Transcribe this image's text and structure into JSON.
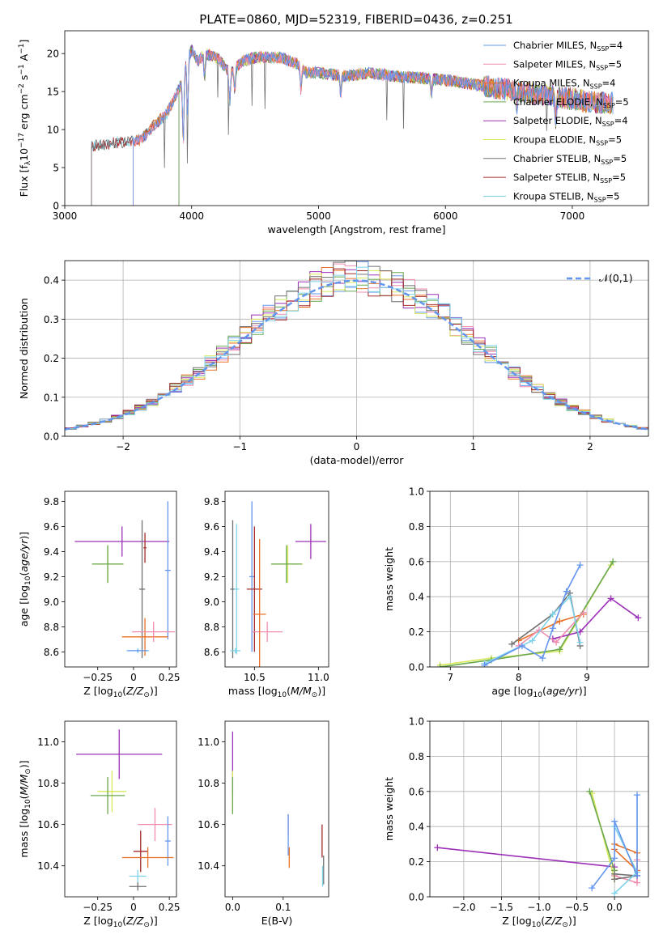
{
  "figure_title": "PLATE=0860, MJD=52319, FIBERID=0436, z=0.251",
  "colors": {
    "chabrier_miles": "#6495ed",
    "salpeter_miles": "#f08cb0",
    "kroupa_miles": "#e8722a",
    "chabrier_elodie": "#6aa84f",
    "salpeter_elodie": "#9c30b8",
    "kroupa_elodie": "#d8e85a",
    "chabrier_stelib": "#707070",
    "salpeter_stelib": "#a52a2a",
    "kroupa_stelib": "#7ed3ea",
    "normal_curve": "#6495ed"
  },
  "series_names": [
    {
      "key": "chabrier_miles",
      "prefix": "Chabrier MILES, N",
      "sub": "SSP",
      "suffix": "=4"
    },
    {
      "key": "salpeter_miles",
      "prefix": "Salpeter MILES, N",
      "sub": "SSP",
      "suffix": "=5"
    },
    {
      "key": "kroupa_miles",
      "prefix": "Kroupa MILES, N",
      "sub": "SSP",
      "suffix": "=4"
    },
    {
      "key": "chabrier_elodie",
      "prefix": "Chabrier ELODIE, N",
      "sub": "SSP",
      "suffix": "=5"
    },
    {
      "key": "salpeter_elodie",
      "prefix": "Salpeter ELODIE, N",
      "sub": "SSP",
      "suffix": "=4"
    },
    {
      "key": "kroupa_elodie",
      "prefix": "Kroupa ELODIE, N",
      "sub": "SSP",
      "suffix": "=5"
    },
    {
      "key": "chabrier_stelib",
      "prefix": "Chabrier STELIB, N",
      "sub": "SSP",
      "suffix": "=5"
    },
    {
      "key": "salpeter_stelib",
      "prefix": "Salpeter STELIB, N",
      "sub": "SSP",
      "suffix": "=5"
    },
    {
      "key": "kroupa_stelib",
      "prefix": "Kroupa STELIB, N",
      "sub": "SSP",
      "suffix": "=5"
    }
  ],
  "chart_data": [
    {
      "id": "spectrum",
      "type": "line",
      "xlabel": "wavelength [Angstrom, rest frame]",
      "ylabel": "Flux [f_λ 10^-17 erg cm^-2 s^-1 A^-1]",
      "xlim": [
        3000,
        7600
      ],
      "ylim": [
        0,
        23
      ],
      "xticks": [
        3000,
        4000,
        5000,
        6000,
        7000
      ],
      "yticks": [
        0,
        5,
        10,
        15,
        20
      ],
      "start_wavelength": {
        "chabrier_miles": 3540,
        "salpeter_miles": 3540,
        "kroupa_miles": 3540,
        "chabrier_elodie": 3900,
        "salpeter_elodie": 3900,
        "kroupa_elodie": 3900,
        "chabrier_stelib": 3210,
        "salpeter_stelib": 3210,
        "kroupa_stelib": 3210
      },
      "continuum": {
        "x": [
          3210,
          3400,
          3600,
          3700,
          3800,
          3860,
          3920,
          3960,
          4000,
          4050,
          4100,
          4200,
          4300,
          4400,
          4500,
          4700,
          4850,
          4900,
          5000,
          5200,
          5400,
          5600,
          5800,
          6000,
          6200,
          6400,
          6600,
          6800,
          7000,
          7200,
          7300
        ],
        "y": [
          7.8,
          8.3,
          8.6,
          10.5,
          12,
          14,
          16,
          19,
          20.5,
          19,
          20,
          19.5,
          17.5,
          19,
          19.5,
          19.5,
          18.5,
          17.5,
          17.5,
          17,
          17.5,
          17,
          16.8,
          16.5,
          16,
          15.5,
          15,
          14.5,
          14,
          13.5,
          13.5
        ]
      }
    },
    {
      "id": "residuals",
      "type": "histogram",
      "xlabel": "(data-model)/error",
      "ylabel": "Normed distribution",
      "xlim": [
        -2.5,
        2.5
      ],
      "ylim": [
        0,
        0.45
      ],
      "xticks": [
        -2,
        -1,
        0,
        1,
        2
      ],
      "yticks": [
        0.0,
        0.1,
        0.2,
        0.3,
        0.4
      ],
      "bin_width": 0.1,
      "reference_curve": {
        "name": "𝒩(0,1)",
        "mean": 0,
        "sigma": 1
      }
    },
    {
      "id": "age_vs_Z",
      "type": "errorbar",
      "xlabel": "Z [log10(Z/Z☉)]",
      "ylabel": "age [log10(age/yr)]",
      "xlim": [
        -0.48,
        0.3
      ],
      "ylim": [
        8.48,
        9.88
      ],
      "xticks": [
        -0.25,
        0.0,
        0.25
      ],
      "yticks": [
        8.6,
        8.8,
        9.0,
        9.2,
        9.4,
        9.6,
        9.8
      ],
      "points": [
        {
          "series": "salpeter_elodie",
          "x": -0.08,
          "xerr": 0.33,
          "y": 9.48,
          "yerr": 0.12
        },
        {
          "series": "kroupa_elodie",
          "x": -0.18,
          "xerr": 0.11,
          "y": 9.3,
          "yerr": 0.15
        },
        {
          "series": "chabrier_elodie",
          "x": -0.18,
          "xerr": 0.11,
          "y": 9.3,
          "yerr": 0.15
        },
        {
          "series": "salpeter_stelib",
          "x": 0.08,
          "xerr": 0.01,
          "y": 9.43,
          "yerr": 0.12
        },
        {
          "series": "chabrier_stelib",
          "x": 0.06,
          "xerr": 0.02,
          "y": 9.1,
          "yerr": 0.55
        },
        {
          "series": "chabrier_miles",
          "x": 0.24,
          "xerr": 0.02,
          "y": 9.25,
          "yerr": 0.55
        },
        {
          "series": "kroupa_miles",
          "x": 0.08,
          "xerr": 0.16,
          "y": 8.72,
          "yerr": 0.15
        },
        {
          "series": "salpeter_miles",
          "x": 0.14,
          "xerr": 0.15,
          "y": 8.76,
          "yerr": 0.08
        },
        {
          "series": "kroupa_stelib",
          "x": 0.03,
          "xerr": 0.08,
          "y": 8.61,
          "yerr": 0.02
        },
        {
          "series": "chabrier_miles",
          "x": 0.03,
          "xerr": 0.07,
          "y": 8.61,
          "yerr": 0.01
        }
      ]
    },
    {
      "id": "age_vs_mass",
      "type": "errorbar",
      "xlabel": "mass [log10(M/M☉)]",
      "ylabel": "",
      "xlim": [
        10.27,
        11.08
      ],
      "ylim": [
        8.48,
        9.88
      ],
      "xticks": [
        10.5,
        11.0
      ],
      "yticks": [
        8.6,
        8.8,
        9.0,
        9.2,
        9.4,
        9.6,
        9.8
      ],
      "points": [
        {
          "series": "salpeter_elodie",
          "x": 10.94,
          "xerr": 0.12,
          "y": 9.48,
          "yerr": 0.14
        },
        {
          "series": "kroupa_elodie",
          "x": 10.76,
          "xerr": 0.12,
          "y": 9.3,
          "yerr": 0.15
        },
        {
          "series": "chabrier_elodie",
          "x": 10.75,
          "xerr": 0.12,
          "y": 9.3,
          "yerr": 0.15
        },
        {
          "series": "chabrier_stelib",
          "x": 10.33,
          "xerr": 0.02,
          "y": 9.1,
          "yerr": 0.55
        },
        {
          "series": "kroupa_stelib",
          "x": 10.36,
          "xerr": 0.02,
          "y": 9.1,
          "yerr": 0.52
        },
        {
          "series": "chabrier_miles",
          "x": 10.48,
          "xerr": 0.02,
          "y": 9.2,
          "yerr": 0.6
        },
        {
          "series": "salpeter_stelib",
          "x": 10.5,
          "xerr": 0.06,
          "y": 9.1,
          "yerr": 0.5
        },
        {
          "series": "salpeter_miles",
          "x": 10.6,
          "xerr": 0.12,
          "y": 8.76,
          "yerr": 0.08
        },
        {
          "series": "kroupa_miles",
          "x": 10.54,
          "xerr": 0.05,
          "y": 8.9,
          "yerr": 0.6
        },
        {
          "series": "kroupa_stelib",
          "x": 10.35,
          "xerr": 0.04,
          "y": 8.61,
          "yerr": 0.02
        }
      ]
    },
    {
      "id": "massweight_vs_age",
      "type": "line",
      "xlabel": "age [log10(age/yr)]",
      "ylabel": "mass weight",
      "xlim": [
        6.7,
        9.9
      ],
      "ylim": [
        0,
        1
      ],
      "xticks": [
        7,
        8,
        9
      ],
      "yticks": [
        0.0,
        0.2,
        0.4,
        0.6,
        0.8,
        1.0
      ],
      "series": [
        {
          "series": "kroupa_elodie",
          "x": [
            6.85,
            7.6,
            8.6,
            9.35
          ],
          "y": [
            0.01,
            0.05,
            0.09,
            0.58
          ]
        },
        {
          "series": "chabrier_elodie",
          "x": [
            6.85,
            7.6,
            8.6,
            9.38
          ],
          "y": [
            0.0,
            0.04,
            0.1,
            0.6
          ]
        },
        {
          "series": "salpeter_elodie",
          "x": [
            8.5,
            8.9,
            9.35,
            9.75
          ],
          "y": [
            0.16,
            0.2,
            0.39,
            0.28
          ]
        },
        {
          "series": "kroupa_miles",
          "x": [
            8.0,
            8.6,
            8.95
          ],
          "y": [
            0.15,
            0.26,
            0.3
          ]
        },
        {
          "series": "salpeter_miles",
          "x": [
            8.0,
            8.3,
            8.55,
            8.95
          ],
          "y": [
            0.12,
            0.21,
            0.14,
            0.31
          ]
        },
        {
          "series": "chabrier_stelib",
          "x": [
            7.9,
            8.5,
            8.75,
            8.9
          ],
          "y": [
            0.13,
            0.3,
            0.42,
            0.12
          ]
        },
        {
          "series": "kroupa_stelib",
          "x": [
            7.5,
            8.2,
            8.5,
            8.75,
            8.9
          ],
          "y": [
            0.02,
            0.15,
            0.3,
            0.4,
            0.14
          ]
        },
        {
          "series": "chabrier_miles",
          "x": [
            7.5,
            8.05,
            8.35,
            8.5,
            8.7,
            8.9
          ],
          "y": [
            0.01,
            0.12,
            0.05,
            0.22,
            0.43,
            0.58
          ]
        }
      ]
    },
    {
      "id": "mass_vs_Z",
      "type": "errorbar",
      "xlabel": "Z [log10(Z/Z☉)]",
      "ylabel": "mass [log10(M/M☉)]",
      "xlim": [
        -0.48,
        0.3
      ],
      "ylim": [
        10.25,
        11.1
      ],
      "xticks": [
        -0.25,
        0.0,
        0.25
      ],
      "yticks": [
        10.4,
        10.6,
        10.8,
        11.0
      ],
      "points": [
        {
          "series": "salpeter_elodie",
          "x": -0.1,
          "xerr": 0.3,
          "y": 10.94,
          "yerr": 0.12
        },
        {
          "series": "kroupa_elodie",
          "x": -0.15,
          "xerr": 0.1,
          "y": 10.76,
          "yerr": 0.1
        },
        {
          "series": "chabrier_elodie",
          "x": -0.18,
          "xerr": 0.12,
          "y": 10.74,
          "yerr": 0.09
        },
        {
          "series": "salpeter_miles",
          "x": 0.15,
          "xerr": 0.12,
          "y": 10.6,
          "yerr": 0.08
        },
        {
          "series": "chabrier_miles",
          "x": 0.24,
          "xerr": 0.02,
          "y": 10.52,
          "yerr": 0.12
        },
        {
          "series": "salpeter_stelib",
          "x": 0.05,
          "xerr": 0.05,
          "y": 10.47,
          "yerr": 0.1
        },
        {
          "series": "kroupa_miles",
          "x": 0.1,
          "xerr": 0.18,
          "y": 10.44,
          "yerr": 0.05
        },
        {
          "series": "kroupa_stelib",
          "x": 0.03,
          "xerr": 0.06,
          "y": 10.35,
          "yerr": 0.03
        },
        {
          "series": "chabrier_stelib",
          "x": 0.03,
          "xerr": 0.06,
          "y": 10.3,
          "yerr": 0.02
        }
      ]
    },
    {
      "id": "mass_vs_EBV",
      "type": "errorbar",
      "xlabel": "E(B-V)",
      "ylabel": "",
      "xlim": [
        -0.015,
        0.19
      ],
      "ylim": [
        10.25,
        11.1
      ],
      "xticks": [
        0.0,
        0.1
      ],
      "yticks": [
        10.4,
        10.6,
        10.8,
        11.0
      ],
      "points": [
        {
          "series": "salpeter_elodie",
          "x": 0.0,
          "y": 10.9,
          "yerr": 0.15
        },
        {
          "series": "kroupa_elodie",
          "x": 0.0,
          "y": 10.76,
          "yerr": 0.1
        },
        {
          "series": "chabrier_elodie",
          "x": 0.0,
          "y": 10.74,
          "yerr": 0.09
        },
        {
          "series": "salpeter_miles",
          "x": 0.11,
          "y": 10.6,
          "yerr": 0.05
        },
        {
          "series": "chabrier_miles",
          "x": 0.11,
          "y": 10.55,
          "yerr": 0.1
        },
        {
          "series": "kroupa_miles",
          "x": 0.112,
          "y": 10.44,
          "yerr": 0.05
        },
        {
          "series": "salpeter_stelib",
          "x": 0.177,
          "y": 10.52,
          "yerr": 0.08
        },
        {
          "series": "chabrier_stelib",
          "x": 0.18,
          "y": 10.38,
          "yerr": 0.07
        },
        {
          "series": "kroupa_stelib",
          "x": 0.178,
          "y": 10.35,
          "yerr": 0.05
        }
      ]
    },
    {
      "id": "massweight_vs_Z",
      "type": "line",
      "xlabel": "Z [log10(Z/Z☉)]",
      "ylabel": "mass weight",
      "xlim": [
        -2.45,
        0.45
      ],
      "ylim": [
        0,
        1
      ],
      "xticks": [
        -2.0,
        -1.5,
        -1.0,
        -0.5,
        0.0
      ],
      "yticks": [
        0.0,
        0.2,
        0.4,
        0.6,
        0.8,
        1.0
      ],
      "series": [
        {
          "series": "salpeter_elodie",
          "x": [
            -2.35,
            0.0
          ],
          "y": [
            0.28,
            0.17
          ]
        },
        {
          "series": "kroupa_elodie",
          "x": [
            -0.3,
            0.0
          ],
          "y": [
            0.59,
            0.1
          ]
        },
        {
          "series": "chabrier_elodie",
          "x": [
            -0.33,
            0.0
          ],
          "y": [
            0.6,
            0.15
          ]
        },
        {
          "series": "kroupa_miles",
          "x": [
            0.0,
            0.3,
            0.3,
            0.0
          ],
          "y": [
            0.3,
            0.25,
            0.15,
            0.27
          ]
        },
        {
          "series": "salpeter_miles",
          "x": [
            0.0,
            0.3,
            0.3
          ],
          "y": [
            0.12,
            0.08,
            0.21
          ]
        },
        {
          "series": "chabrier_stelib",
          "x": [
            0.0,
            0.3,
            0.0
          ],
          "y": [
            0.13,
            0.12,
            0.1
          ]
        },
        {
          "series": "kroupa_stelib",
          "x": [
            0.0,
            0.3,
            0.0
          ],
          "y": [
            0.02,
            0.14,
            0.4
          ]
        },
        {
          "series": "chabrier_miles",
          "x": [
            -0.3,
            0.0,
            0.0,
            0.3,
            0.3
          ],
          "y": [
            0.05,
            0.22,
            0.43,
            0.12,
            0.58
          ]
        }
      ]
    }
  ]
}
